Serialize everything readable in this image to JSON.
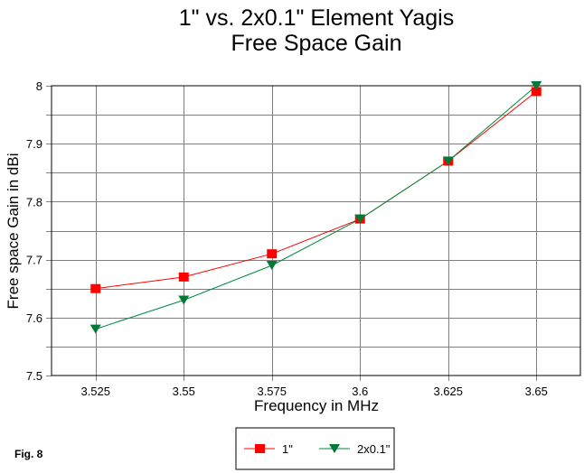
{
  "chart_data": {
    "type": "line",
    "title": [
      "1\" vs. 2x0.1\" Element Yagis",
      "Free Space Gain"
    ],
    "xlabel": "Frequency in MHz",
    "ylabel": "Free space Gain in dBi",
    "x": [
      3.525,
      3.55,
      3.575,
      3.6,
      3.625,
      3.65
    ],
    "x_tick_labels": [
      "3.525",
      "3.55",
      "3.575",
      "3.6",
      "3.625",
      "3.65"
    ],
    "xlim": [
      3.5125,
      3.6625
    ],
    "ylim": [
      7.5,
      8.0
    ],
    "y_ticks": [
      7.5,
      7.6,
      7.7,
      7.8,
      7.9,
      8.0
    ],
    "y_tick_labels": [
      "7.5",
      "7.6",
      "7.7",
      "7.8",
      "7.9",
      "8"
    ],
    "y_minor_grid_step": 0.05,
    "grid": true,
    "legend_placement": "bottom-center",
    "series": [
      {
        "name": "1\"",
        "values": [
          7.65,
          7.67,
          7.71,
          7.77,
          7.87,
          7.99
        ],
        "color": "#ff0000",
        "marker": "square"
      },
      {
        "name": "2x0.1\"",
        "values": [
          7.58,
          7.63,
          7.69,
          7.77,
          7.87,
          8.0
        ],
        "color": "#008a3c",
        "marker": "triangle-down"
      }
    ],
    "annotation": "Fig. 8"
  }
}
